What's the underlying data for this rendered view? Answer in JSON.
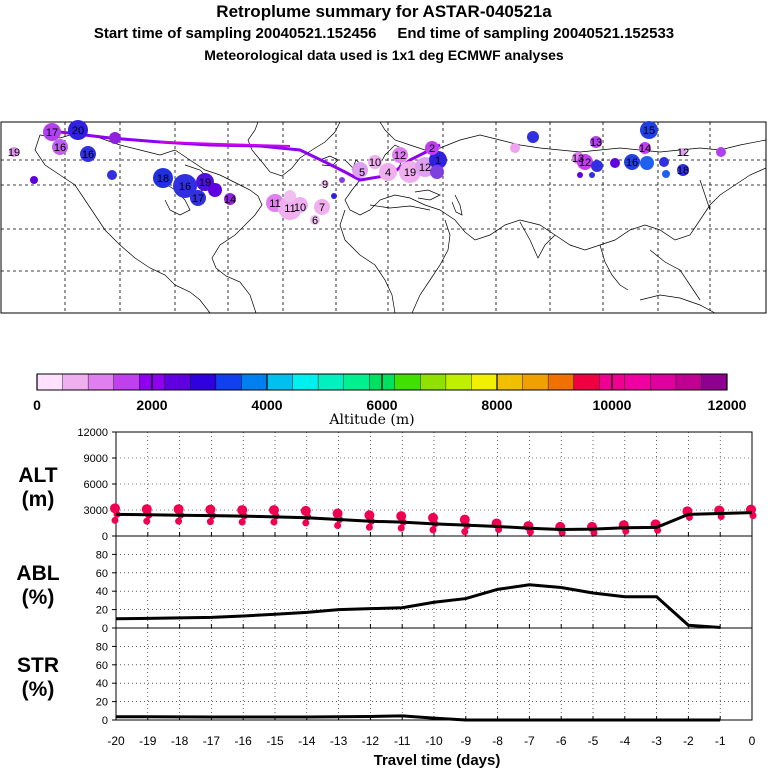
{
  "header": {
    "title": "Retroplume summary for ASTAR-040521a",
    "sampling_line": "Start time of sampling 20040521.152456     End time of sampling 20040521.152533",
    "met_line": "Meteorological data used is 1x1 deg ECMWF analyses"
  },
  "colorbar": {
    "title": "Altitude (m)",
    "tick_labels": [
      "0",
      "2000",
      "4000",
      "6000",
      "8000",
      "10000",
      "12000"
    ],
    "colors": [
      "#ffe0ff",
      "#f0b0f0",
      "#e080f0",
      "#c040f0",
      "#9000f0",
      "#6000e0",
      "#3000e0",
      "#1040f0",
      "#0080f0",
      "#00c0f0",
      "#00f0f0",
      "#00f0c0",
      "#00f090",
      "#00e060",
      "#40e000",
      "#90e000",
      "#c0f000",
      "#f0f000",
      "#f0c000",
      "#f0a000",
      "#f07000",
      "#f00040",
      "#f00090",
      "#f000a0",
      "#e000a0",
      "#c00090",
      "#900090"
    ]
  },
  "map": {
    "labels": [
      {
        "t": "17",
        "c": "#8020d0"
      },
      {
        "t": "20",
        "c": "#3020e0"
      },
      {
        "t": "16",
        "c": "#8020d0"
      },
      {
        "t": "16",
        "c": "#3020e0"
      },
      {
        "t": "19",
        "c": "#e080f0"
      },
      {
        "t": "18",
        "c": "#2030e0"
      },
      {
        "t": "16",
        "c": "#3030e0"
      },
      {
        "t": "19",
        "c": "#3030e0"
      },
      {
        "t": "17",
        "c": "#3030e0"
      },
      {
        "t": "14",
        "c": "#9020e0"
      },
      {
        "t": "11",
        "c": "#e080f0"
      },
      {
        "t": "11",
        "c": "#e0a0f0"
      },
      {
        "t": "10",
        "c": "#e0a0f0"
      },
      {
        "t": "7",
        "c": "#e0a0f0"
      },
      {
        "t": "6",
        "c": "#f0c0f0"
      },
      {
        "t": "9",
        "c": "#f0c0f0"
      },
      {
        "t": "10",
        "c": "#f0c0f0"
      },
      {
        "t": "5",
        "c": "#e0a0f0"
      },
      {
        "t": "4",
        "c": "#e0a0f0"
      },
      {
        "t": "1",
        "c": "#3020e0"
      },
      {
        "t": "2",
        "c": "#8040e0"
      },
      {
        "t": "12",
        "c": "#f0a0f0"
      },
      {
        "t": "19",
        "c": "#2040e0"
      },
      {
        "t": "12",
        "c": "#f0b0f0"
      },
      {
        "t": "13",
        "c": "#e080f0"
      },
      {
        "t": "13",
        "c": "#c040f0"
      },
      {
        "t": "12",
        "c": "#c040f0"
      },
      {
        "t": "15",
        "c": "#2040e0"
      },
      {
        "t": "14",
        "c": "#c040f0"
      },
      {
        "t": "16",
        "c": "#2060f0"
      },
      {
        "t": "12",
        "c": "#e0a0f0"
      },
      {
        "t": "18",
        "c": "#2030e0"
      }
    ]
  },
  "chart_data": [
    {
      "type": "scatter",
      "name": "ALT",
      "ylabel": "ALT\n(m)",
      "ylabel_line1": "ALT",
      "ylabel_line2": "(m)",
      "ylim": [
        0,
        12000
      ],
      "yticks": [
        "0",
        "3000",
        "6000",
        "9000",
        "12000"
      ],
      "x": [
        -20,
        -19,
        -18,
        -17,
        -16,
        -15,
        -14,
        -13,
        -12,
        -11,
        -10,
        -9,
        -8,
        -7,
        -6,
        -5,
        -4,
        -3,
        -2,
        -1,
        0
      ],
      "mean_line": [
        2500,
        2450,
        2400,
        2350,
        2300,
        2200,
        2100,
        1900,
        1700,
        1600,
        1400,
        1250,
        1100,
        900,
        750,
        800,
        950,
        1000,
        2500,
        2600,
        2700
      ],
      "points": [
        2500,
        2400,
        2400,
        2350,
        2300,
        2300,
        2200,
        1900,
        1700,
        1600,
        1400,
        1200,
        1100,
        800,
        700,
        700,
        900,
        1000,
        2500,
        2600,
        2700
      ]
    },
    {
      "type": "line",
      "name": "ABL",
      "ylabel_line1": "ABL",
      "ylabel_line2": "(%)",
      "ylim": [
        0,
        100
      ],
      "yticks": [
        "0",
        "20",
        "40",
        "60",
        "80"
      ],
      "x": [
        -20,
        -19,
        -18,
        -17,
        -16,
        -15,
        -14,
        -13,
        -12,
        -11,
        -10,
        -9,
        -8,
        -7,
        -6,
        -5,
        -4,
        -3,
        -2,
        -1
      ],
      "values": [
        10,
        10.5,
        11,
        11.5,
        13,
        15,
        17,
        20,
        21,
        22,
        28,
        32,
        42,
        47,
        44,
        38,
        34,
        34,
        3,
        0.5
      ]
    },
    {
      "type": "line",
      "name": "STR",
      "ylabel_line1": "STR",
      "ylabel_line2": "(%)",
      "ylim": [
        0,
        100
      ],
      "yticks": [
        "0",
        "20",
        "40",
        "60",
        "80"
      ],
      "x": [
        -20,
        -19,
        -18,
        -17,
        -16,
        -15,
        -14,
        -13,
        -12,
        -11,
        -10,
        -9,
        -8,
        -7,
        -6,
        -5,
        -4,
        -3,
        -2,
        -1
      ],
      "values": [
        3.5,
        3.5,
        3.4,
        3.3,
        3.2,
        3.2,
        3.3,
        3.6,
        3.8,
        4.5,
        2,
        0,
        0,
        0,
        0,
        0,
        0,
        0,
        0,
        0
      ]
    }
  ],
  "xaxis": {
    "title": "Travel time (days)",
    "tick_labels": [
      "-20",
      "-19",
      "-18",
      "-17",
      "-16",
      "-15",
      "-14",
      "-13",
      "-12",
      "-11",
      "-10",
      "-9",
      "-8",
      "-7",
      "-6",
      "-5",
      "-4",
      "-3",
      "-2",
      "-1",
      "0"
    ]
  }
}
